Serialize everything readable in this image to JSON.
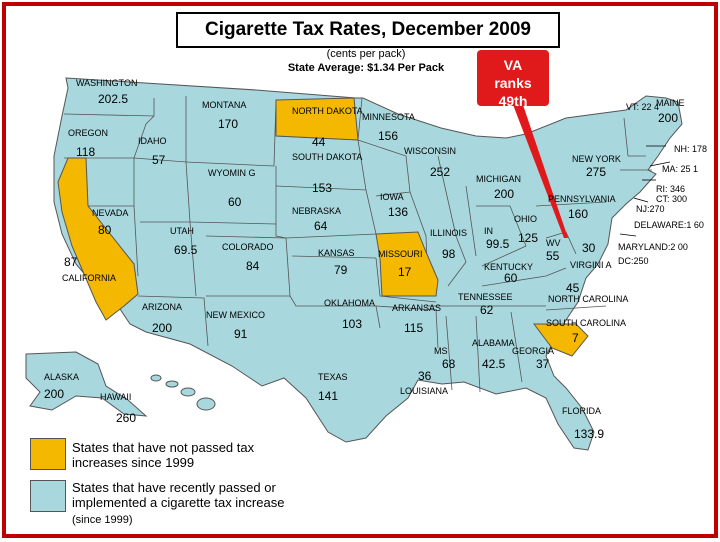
{
  "title": "Cigarette Tax Rates, December 2009",
  "subtitle": "(cents per pack)",
  "state_average": "State Average: $1.34 Per Pack",
  "callout": {
    "line1": "VA",
    "line2": "ranks",
    "line3": "49th"
  },
  "colors": {
    "not_passed": "#f5b800",
    "passed": "#a8d8de",
    "callout": "#e0191a",
    "border": "#c00000"
  },
  "states": [
    {
      "id": "WA",
      "name": "WASHINGTON",
      "value": "202.5",
      "category": "passed"
    },
    {
      "id": "OR",
      "name": "OREGON",
      "value": "118",
      "category": "passed"
    },
    {
      "id": "CA",
      "name": "CALIFORNIA",
      "value": "87",
      "category": "not_passed"
    },
    {
      "id": "ID",
      "name": "IDAHO",
      "value": "57",
      "category": "passed"
    },
    {
      "id": "NV",
      "name": "NEVADA",
      "value": "80",
      "category": "passed"
    },
    {
      "id": "MT",
      "name": "MONTANA",
      "value": "170",
      "category": "passed"
    },
    {
      "id": "WY",
      "name": "WYOMIN G",
      "value": "60",
      "category": "passed"
    },
    {
      "id": "UT",
      "name": "UTAH",
      "value": "69.5",
      "category": "passed"
    },
    {
      "id": "AZ",
      "name": "ARIZONA",
      "value": "200",
      "category": "passed"
    },
    {
      "id": "CO",
      "name": "COLORADO",
      "value": "84",
      "category": "passed"
    },
    {
      "id": "NM",
      "name": "NEW MEXICO",
      "value": "91",
      "category": "passed"
    },
    {
      "id": "ND",
      "name": "NORTH DAKOTA",
      "value": "44",
      "category": "not_passed"
    },
    {
      "id": "SD",
      "name": "SOUTH DAKOTA",
      "value": "153",
      "category": "passed"
    },
    {
      "id": "NE",
      "name": "NEBRASKA",
      "value": "64",
      "category": "passed"
    },
    {
      "id": "KS",
      "name": "KANSAS",
      "value": "79",
      "category": "passed"
    },
    {
      "id": "OK",
      "name": "OKLAHOMA",
      "value": "103",
      "category": "passed"
    },
    {
      "id": "TX",
      "name": "TEXAS",
      "value": "141",
      "category": "passed"
    },
    {
      "id": "MN",
      "name": "MINNESOTA",
      "value": "156",
      "category": "passed"
    },
    {
      "id": "IA",
      "name": "IOWA",
      "value": "136",
      "category": "passed"
    },
    {
      "id": "MO",
      "name": "MISSOURI",
      "value": "17",
      "category": "not_passed"
    },
    {
      "id": "AR",
      "name": "ARKANSAS",
      "value": "115",
      "category": "passed"
    },
    {
      "id": "LA",
      "name": "LOUISIANA",
      "value": "36",
      "category": "passed"
    },
    {
      "id": "WI",
      "name": "WISCONSIN",
      "value": "252",
      "category": "passed"
    },
    {
      "id": "IL",
      "name": "ILLINOIS",
      "value": "98",
      "category": "passed"
    },
    {
      "id": "MI",
      "name": "MICHIGAN",
      "value": "200",
      "category": "passed"
    },
    {
      "id": "IN",
      "name": "IN",
      "value": "99.5",
      "category": "passed"
    },
    {
      "id": "OH",
      "name": "OHIO",
      "value": "125",
      "category": "passed"
    },
    {
      "id": "KY",
      "name": "KENTUCKY",
      "value": "60",
      "category": "passed"
    },
    {
      "id": "TN",
      "name": "TENNESSEE",
      "value": "62",
      "category": "passed"
    },
    {
      "id": "MS",
      "name": "MS",
      "value": "68",
      "category": "passed"
    },
    {
      "id": "AL",
      "name": "ALABAMA",
      "value": "42.5",
      "category": "passed"
    },
    {
      "id": "GA",
      "name": "GEORGIA",
      "value": "37",
      "category": "passed"
    },
    {
      "id": "FL",
      "name": "FLORIDA",
      "value": "133.9",
      "category": "passed"
    },
    {
      "id": "SC",
      "name": "SOUTH CAROLINA",
      "value": "7",
      "category": "not_passed"
    },
    {
      "id": "NC",
      "name": "NORTH CAROLINA",
      "value": "45",
      "category": "passed"
    },
    {
      "id": "VA",
      "name": "VIRGINI A",
      "value": "30",
      "category": "passed"
    },
    {
      "id": "WV",
      "name": "WV",
      "value": "55",
      "category": "passed"
    },
    {
      "id": "PA",
      "name": "PENNSYLVANIA",
      "value": "160",
      "category": "passed"
    },
    {
      "id": "NY",
      "name": "NEW YORK",
      "value": "275",
      "category": "passed"
    },
    {
      "id": "ME",
      "name": "MAINE",
      "value": "200",
      "category": "passed"
    },
    {
      "id": "AK",
      "name": "ALASKA",
      "value": "200",
      "category": "passed"
    },
    {
      "id": "HI",
      "name": "HAWAII",
      "value": "260",
      "category": "passed"
    }
  ],
  "northeast": [
    {
      "text": "VT: 22 4"
    },
    {
      "text": "NH: 178"
    },
    {
      "text": "MA: 25 1"
    },
    {
      "text": "CT: 300"
    },
    {
      "text": "RI: 346"
    },
    {
      "text": "NJ:270"
    },
    {
      "text": "DELAWARE:1 60"
    },
    {
      "text": "MARYLAND:2 00"
    },
    {
      "text": "DC:250"
    }
  ],
  "legend": {
    "not_passed": "States that have not passed tax increases since 1999",
    "passed": "States that have recently passed or implemented a cigarette tax increase",
    "passed_note": "(since 1999)"
  }
}
